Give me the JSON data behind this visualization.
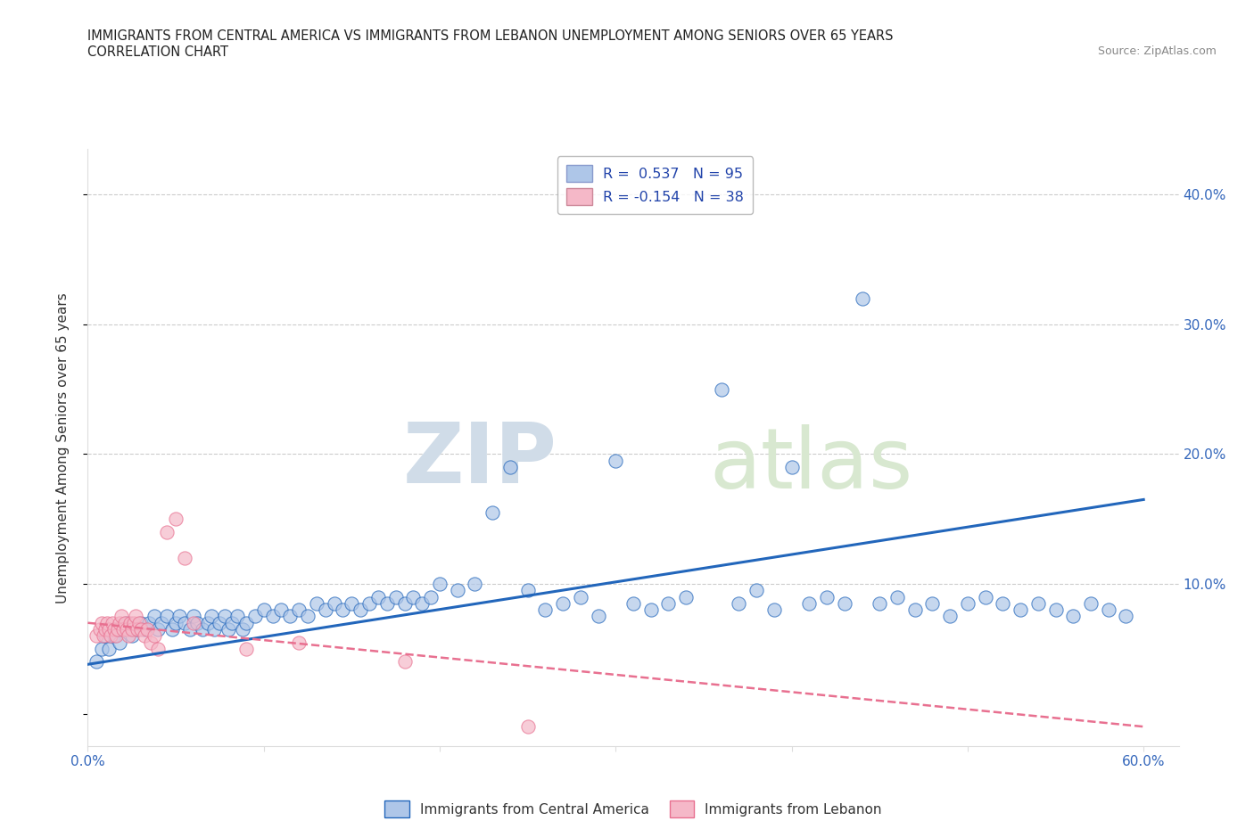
{
  "title_line1": "IMMIGRANTS FROM CENTRAL AMERICA VS IMMIGRANTS FROM LEBANON UNEMPLOYMENT AMONG SENIORS OVER 65 YEARS",
  "title_line2": "CORRELATION CHART",
  "source": "Source: ZipAtlas.com",
  "ylabel": "Unemployment Among Seniors over 65 years",
  "xlim": [
    0.0,
    0.62
  ],
  "ylim": [
    -0.025,
    0.43
  ],
  "R_blue": 0.537,
  "N_blue": 95,
  "R_pink": -0.154,
  "N_pink": 38,
  "color_blue": "#aec6e8",
  "color_pink": "#f5b8c8",
  "line_blue": "#2266bb",
  "line_pink": "#e87090",
  "watermark_zip": "ZIP",
  "watermark_atlas": "atlas",
  "blue_scatter_x": [
    0.005,
    0.008,
    0.01,
    0.012,
    0.015,
    0.018,
    0.02,
    0.022,
    0.025,
    0.028,
    0.03,
    0.032,
    0.035,
    0.038,
    0.04,
    0.042,
    0.045,
    0.048,
    0.05,
    0.052,
    0.055,
    0.058,
    0.06,
    0.062,
    0.065,
    0.068,
    0.07,
    0.072,
    0.075,
    0.078,
    0.08,
    0.082,
    0.085,
    0.088,
    0.09,
    0.095,
    0.1,
    0.105,
    0.11,
    0.115,
    0.12,
    0.125,
    0.13,
    0.135,
    0.14,
    0.145,
    0.15,
    0.155,
    0.16,
    0.165,
    0.17,
    0.175,
    0.18,
    0.185,
    0.19,
    0.195,
    0.2,
    0.21,
    0.22,
    0.23,
    0.24,
    0.25,
    0.26,
    0.27,
    0.28,
    0.29,
    0.3,
    0.31,
    0.32,
    0.33,
    0.34,
    0.36,
    0.37,
    0.38,
    0.39,
    0.4,
    0.41,
    0.42,
    0.43,
    0.44,
    0.45,
    0.46,
    0.47,
    0.48,
    0.49,
    0.5,
    0.51,
    0.52,
    0.53,
    0.54,
    0.55,
    0.56,
    0.57,
    0.58,
    0.59
  ],
  "blue_scatter_y": [
    0.04,
    0.05,
    0.06,
    0.05,
    0.06,
    0.055,
    0.065,
    0.07,
    0.06,
    0.065,
    0.07,
    0.065,
    0.07,
    0.075,
    0.065,
    0.07,
    0.075,
    0.065,
    0.07,
    0.075,
    0.07,
    0.065,
    0.075,
    0.07,
    0.065,
    0.07,
    0.075,
    0.065,
    0.07,
    0.075,
    0.065,
    0.07,
    0.075,
    0.065,
    0.07,
    0.075,
    0.08,
    0.075,
    0.08,
    0.075,
    0.08,
    0.075,
    0.085,
    0.08,
    0.085,
    0.08,
    0.085,
    0.08,
    0.085,
    0.09,
    0.085,
    0.09,
    0.085,
    0.09,
    0.085,
    0.09,
    0.1,
    0.095,
    0.1,
    0.155,
    0.19,
    0.095,
    0.08,
    0.085,
    0.09,
    0.075,
    0.195,
    0.085,
    0.08,
    0.085,
    0.09,
    0.25,
    0.085,
    0.095,
    0.08,
    0.19,
    0.085,
    0.09,
    0.085,
    0.32,
    0.085,
    0.09,
    0.08,
    0.085,
    0.075,
    0.085,
    0.09,
    0.085,
    0.08,
    0.085,
    0.08,
    0.075,
    0.085,
    0.08,
    0.075
  ],
  "pink_scatter_x": [
    0.005,
    0.007,
    0.008,
    0.009,
    0.01,
    0.011,
    0.012,
    0.013,
    0.014,
    0.015,
    0.016,
    0.017,
    0.018,
    0.019,
    0.02,
    0.021,
    0.022,
    0.023,
    0.024,
    0.025,
    0.026,
    0.027,
    0.028,
    0.029,
    0.03,
    0.032,
    0.034,
    0.036,
    0.038,
    0.04,
    0.045,
    0.05,
    0.055,
    0.06,
    0.09,
    0.12,
    0.18,
    0.25
  ],
  "pink_scatter_y": [
    0.06,
    0.065,
    0.07,
    0.06,
    0.065,
    0.07,
    0.065,
    0.06,
    0.07,
    0.065,
    0.06,
    0.065,
    0.07,
    0.075,
    0.065,
    0.07,
    0.065,
    0.06,
    0.07,
    0.065,
    0.07,
    0.075,
    0.065,
    0.07,
    0.065,
    0.06,
    0.065,
    0.055,
    0.06,
    0.05,
    0.14,
    0.15,
    0.12,
    0.07,
    0.05,
    0.055,
    0.04,
    -0.01
  ]
}
